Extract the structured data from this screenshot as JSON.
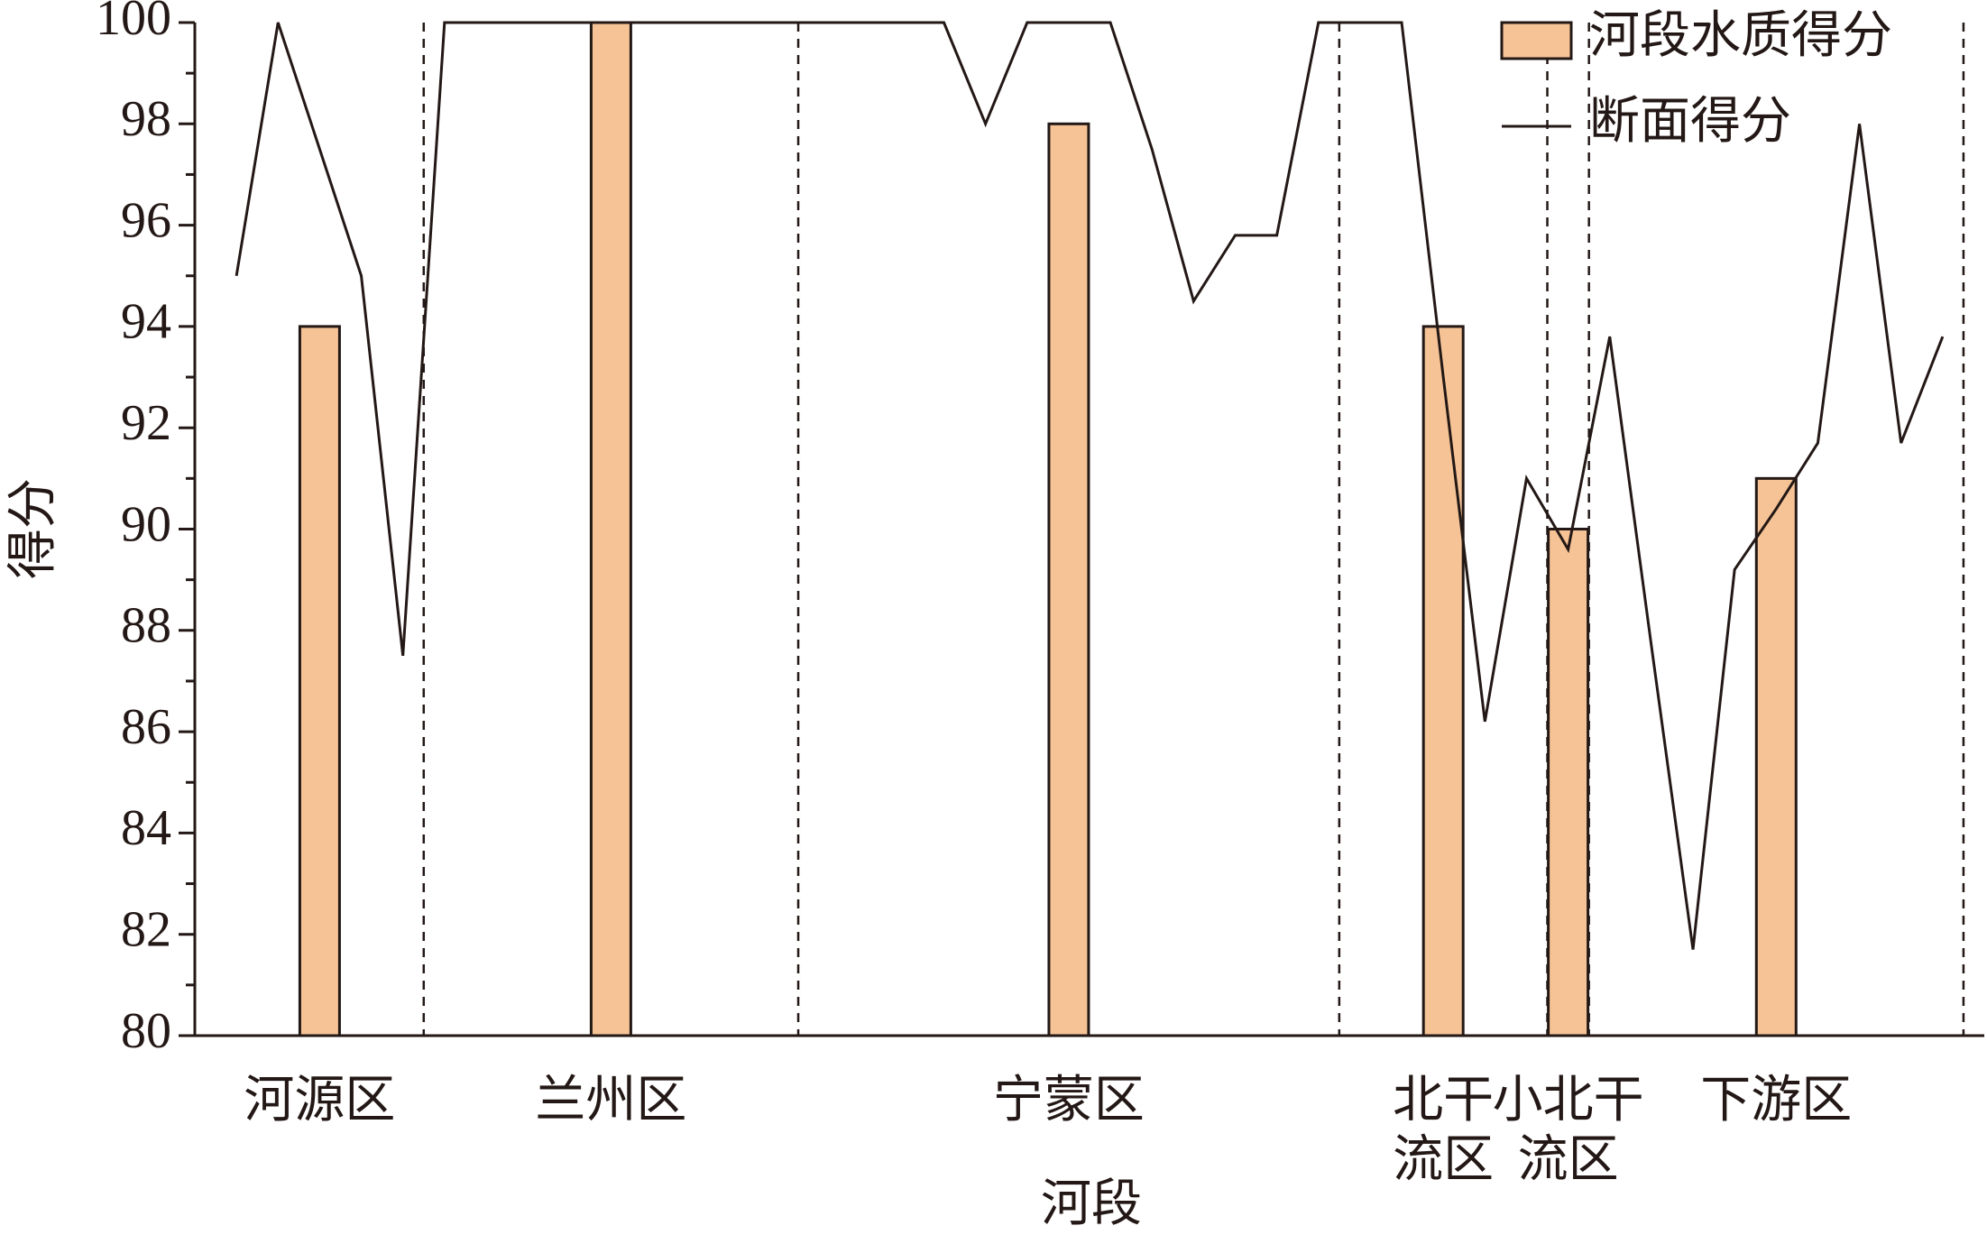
{
  "chart_data": {
    "type": "bar-line",
    "xlabel": "河段",
    "ylabel": "得分",
    "xlim": [
      0,
      43
    ],
    "ylim": [
      80,
      100
    ],
    "yticks": [
      80,
      82,
      84,
      86,
      88,
      90,
      92,
      94,
      96,
      98,
      100
    ],
    "yminor": [
      81,
      83,
      85,
      87,
      89,
      91,
      93,
      95,
      97,
      99
    ],
    "dividers": [
      5.5,
      14.5,
      27.5,
      32.5,
      33.5,
      42.5
    ],
    "categories": [
      [
        "河源区"
      ],
      [
        "兰州区"
      ],
      [
        "宁蒙区"
      ],
      [
        "北干",
        "流区"
      ],
      [
        "小北干",
        "流区"
      ],
      [
        "下游区"
      ]
    ],
    "series": [
      {
        "name": "河段水质得分",
        "kind": "bar",
        "color": "#f5c396",
        "x": [
          3,
          10,
          21,
          30,
          33,
          38
        ],
        "values": [
          94,
          100,
          98,
          94,
          90,
          91
        ]
      },
      {
        "name": "断面得分",
        "kind": "line",
        "color": "#231815",
        "x": [
          1,
          2,
          3,
          4,
          5,
          6,
          7,
          8,
          9,
          10,
          11,
          12,
          13,
          14,
          15,
          16,
          17,
          18,
          19,
          20,
          21,
          22,
          23,
          24,
          25,
          26,
          27,
          28,
          29,
          30,
          31,
          32,
          33,
          34,
          35,
          36,
          37,
          38,
          39,
          40,
          41,
          42
        ],
        "values": [
          95,
          100,
          97.5,
          95,
          87.5,
          100,
          100,
          100,
          100,
          100,
          100,
          100,
          100,
          100,
          100,
          100,
          100,
          100,
          98,
          100,
          100,
          100,
          97.5,
          94.5,
          95.8,
          95.8,
          100,
          100,
          100,
          93,
          86.2,
          91,
          89.6,
          93.8,
          87.7,
          81.7,
          89.2,
          90.4,
          91.7,
          98,
          91.7,
          93.8
        ]
      }
    ]
  }
}
